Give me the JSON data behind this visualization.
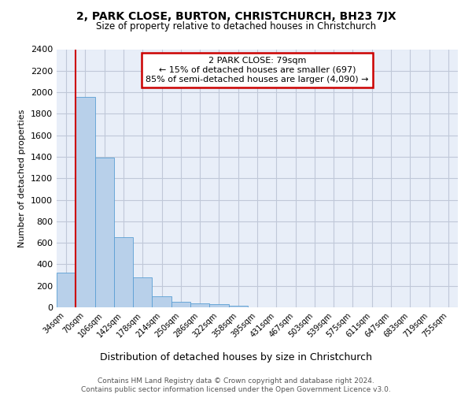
{
  "title": "2, PARK CLOSE, BURTON, CHRISTCHURCH, BH23 7JX",
  "subtitle": "Size of property relative to detached houses in Christchurch",
  "xlabel": "Distribution of detached houses by size in Christchurch",
  "ylabel": "Number of detached properties",
  "footer_line1": "Contains HM Land Registry data © Crown copyright and database right 2024.",
  "footer_line2": "Contains public sector information licensed under the Open Government Licence v3.0.",
  "bin_labels": [
    "34sqm",
    "70sqm",
    "106sqm",
    "142sqm",
    "178sqm",
    "214sqm",
    "250sqm",
    "286sqm",
    "322sqm",
    "358sqm",
    "395sqm",
    "431sqm",
    "467sqm",
    "503sqm",
    "539sqm",
    "575sqm",
    "611sqm",
    "647sqm",
    "683sqm",
    "719sqm",
    "755sqm"
  ],
  "bar_values": [
    320,
    1960,
    1390,
    650,
    280,
    105,
    50,
    40,
    30,
    15,
    0,
    0,
    0,
    0,
    0,
    0,
    0,
    0,
    0,
    0,
    0
  ],
  "bar_color": "#b8d0ea",
  "bar_edge_color": "#5a9fd4",
  "highlight_bar_index": 1,
  "highlight_color": "#cc0000",
  "ylim": [
    0,
    2400
  ],
  "yticks": [
    0,
    200,
    400,
    600,
    800,
    1000,
    1200,
    1400,
    1600,
    1800,
    2000,
    2200,
    2400
  ],
  "annotation_text_line1": "2 PARK CLOSE: 79sqm",
  "annotation_text_line2": "← 15% of detached houses are smaller (697)",
  "annotation_text_line3": "85% of semi-detached houses are larger (4,090) →",
  "bg_color": "#e8eef8",
  "grid_color": "#c0c8d8"
}
